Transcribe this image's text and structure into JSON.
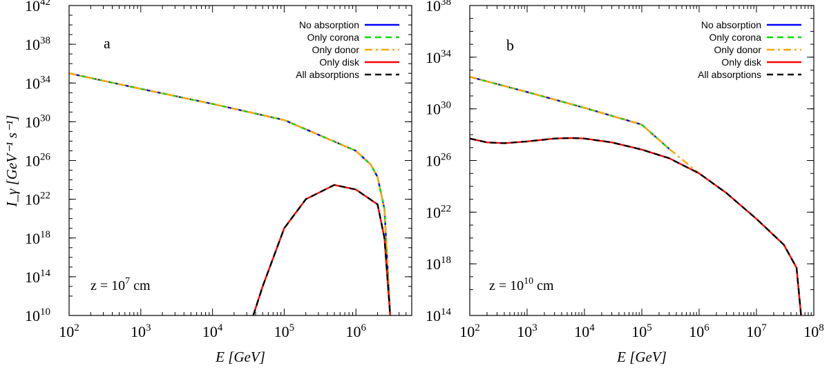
{
  "figure": {
    "ylabel": "I_γ [GeV⁻¹ s⁻¹]"
  },
  "chart_data": [
    {
      "type": "line",
      "panel_label": "a",
      "annotation": {
        "base": "z = 10",
        "exponent": "7",
        "unit": " cm"
      },
      "xlabel": "E [GeV]",
      "x_scale": "log",
      "y_scale": "log",
      "xlim": [
        100,
        6000000
      ],
      "ylim": [
        10000000000.0,
        1e+42
      ],
      "x_ticks": [
        "2",
        "3",
        "4",
        "5",
        "6"
      ],
      "y_ticks": [
        "10",
        "14",
        "18",
        "22",
        "26",
        "30",
        "34",
        "38",
        "42"
      ],
      "legend_position": "top-right",
      "series": [
        {
          "name": "No absorption",
          "color": "#0000ff",
          "dash": "solid",
          "x": [
            100,
            1000,
            10000,
            100000,
            1000000,
            1600000,
            2000000,
            2500000,
            3000000
          ],
          "y": [
            1e+35,
            2.5e+33,
            7e+31,
            1.5e+30,
            1e+27,
            4e+25,
            2e+24,
            1e+21,
            10000000000.0
          ]
        },
        {
          "name": "Only corona",
          "color": "#00dd00",
          "dash": "dashed",
          "x": [
            100,
            1000,
            10000,
            100000,
            1000000,
            1600000,
            2000000,
            2500000,
            3000000
          ],
          "y": [
            1e+35,
            2.5e+33,
            7e+31,
            1.5e+30,
            1e+27,
            4e+25,
            2e+24,
            1e+21,
            10000000000.0
          ]
        },
        {
          "name": "Only donor",
          "color": "#ffa500",
          "dash": "dash-dot",
          "x": [
            100,
            1000,
            10000,
            100000,
            1000000,
            1600000,
            2000000,
            2500000,
            3000000
          ],
          "y": [
            1e+35,
            2.5e+33,
            7e+31,
            1.5e+30,
            1e+27,
            4e+25,
            2e+24,
            1e+21,
            10000000000.0
          ]
        },
        {
          "name": "Only disk",
          "color": "#ff0000",
          "dash": "solid",
          "x": [
            37000,
            50000,
            100000,
            200000,
            500000,
            1000000,
            2000000,
            2500000,
            3000000
          ],
          "y": [
            10000000000.0,
            10000000000000.0,
            1e+19,
            1e+22,
            3e+23,
            1e+23,
            3e+21,
            1e+18,
            10000000000.0
          ]
        },
        {
          "name": "All absorptions",
          "color": "#000000",
          "dash": "dashed",
          "x": [
            37000,
            50000,
            100000,
            200000,
            500000,
            1000000,
            2000000,
            2500000,
            3000000
          ],
          "y": [
            10000000000.0,
            10000000000000.0,
            1e+19,
            1e+22,
            3e+23,
            1e+23,
            3e+21,
            1e+18,
            10000000000.0
          ]
        }
      ]
    },
    {
      "type": "line",
      "panel_label": "b",
      "annotation": {
        "base": "z = 10",
        "exponent": "10",
        "unit": " cm"
      },
      "xlabel": "E [GeV]",
      "x_scale": "log",
      "y_scale": "log",
      "xlim": [
        100,
        100000000
      ],
      "ylim": [
        100000000000000.0,
        1e+38
      ],
      "x_ticks": [
        "2",
        "3",
        "4",
        "5",
        "6",
        "7",
        "8"
      ],
      "y_ticks": [
        "14",
        "18",
        "22",
        "26",
        "30",
        "34",
        "38"
      ],
      "legend_position": "top-right",
      "series": [
        {
          "name": "No absorption",
          "color": "#0000ff",
          "dash": "solid",
          "x": [
            100,
            1000,
            10000,
            100000,
            300000
          ],
          "y": [
            3e+32,
            2e+31,
            1.2e+30,
            6e+28,
            8e+26
          ]
        },
        {
          "name": "Only corona",
          "color": "#00dd00",
          "dash": "dashed",
          "x": [
            100,
            1000,
            10000,
            100000,
            300000
          ],
          "y": [
            3e+32,
            2e+31,
            1.2e+30,
            6e+28,
            8e+26
          ]
        },
        {
          "name": "Only donor",
          "color": "#ffa500",
          "dash": "dash-dot",
          "x": [
            100,
            1000,
            10000,
            100000,
            300000,
            1000000,
            3000000,
            10000000,
            30000000,
            50000000,
            60000000
          ],
          "y": [
            3e+32,
            2e+31,
            1.2e+30,
            6e+28,
            8e+26,
            1e+25,
            3e+23,
            3e+21,
            3e+19,
            5e+17,
            100000000000000.0
          ]
        },
        {
          "name": "Only disk",
          "color": "#ff0000",
          "dash": "solid",
          "x": [
            100,
            200,
            400,
            1000,
            3000,
            6000,
            10000,
            30000,
            100000,
            300000,
            1000000,
            3000000,
            10000000,
            30000000,
            50000000,
            60000000
          ],
          "y": [
            5e+27,
            2.5e+27,
            2.2e+27,
            3e+27,
            5e+27,
            5.5e+27,
            5e+27,
            2.5e+27,
            7e+26,
            1.5e+26,
            1e+25,
            3e+23,
            3e+21,
            3e+19,
            5e+17,
            100000000000000.0
          ]
        },
        {
          "name": "All absorptions",
          "color": "#000000",
          "dash": "dashed",
          "x": [
            100,
            200,
            400,
            1000,
            3000,
            6000,
            10000,
            30000,
            100000,
            300000,
            1000000,
            3000000,
            10000000,
            30000000,
            50000000,
            60000000
          ],
          "y": [
            5e+27,
            2.5e+27,
            2.2e+27,
            3e+27,
            5e+27,
            5.5e+27,
            5e+27,
            2.5e+27,
            7e+26,
            1.5e+26,
            1e+25,
            3e+23,
            3e+21,
            3e+19,
            5e+17,
            100000000000000.0
          ]
        }
      ]
    }
  ]
}
